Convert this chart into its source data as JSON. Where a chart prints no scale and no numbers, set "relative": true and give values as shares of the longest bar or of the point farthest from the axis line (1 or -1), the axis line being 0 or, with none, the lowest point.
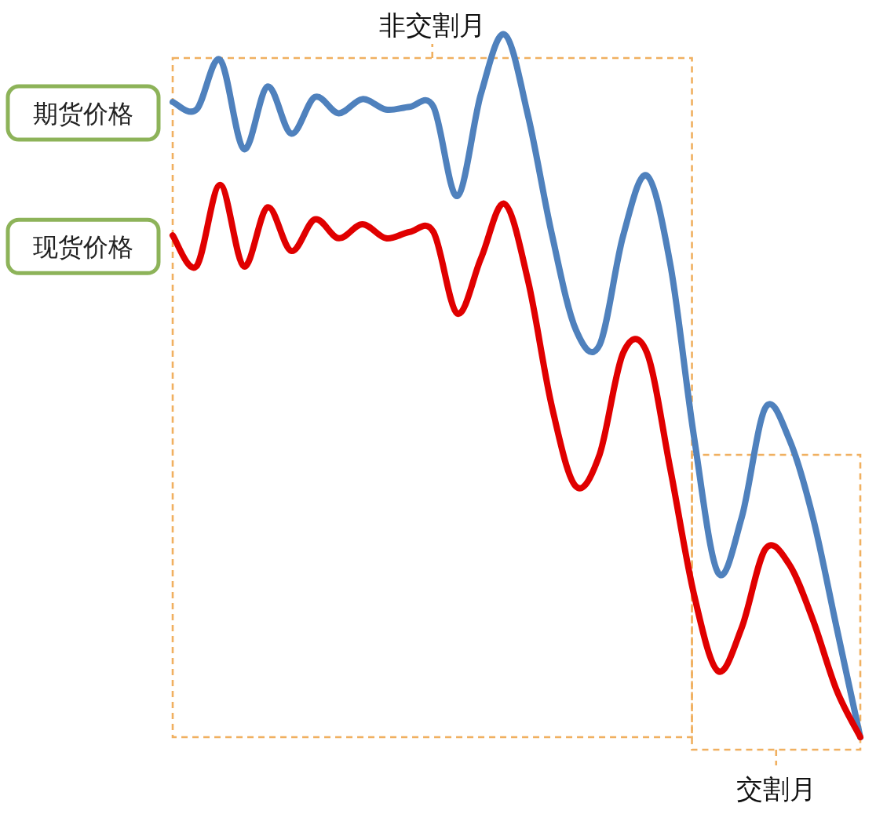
{
  "chart_data": {
    "type": "line",
    "relative": true,
    "legend": "left",
    "categories": [
      null,
      null,
      null,
      null,
      null,
      null,
      null,
      null,
      null,
      null,
      null,
      null,
      null,
      null,
      null,
      null,
      null,
      null,
      null,
      null,
      null,
      null,
      null,
      null,
      null,
      null,
      null,
      null,
      null,
      null
    ],
    "series": [
      {
        "name": "期货价格",
        "color": "#4f81bd",
        "values": [
          0.904,
          0.893,
          0.964,
          0.837,
          0.926,
          0.859,
          0.911,
          0.888,
          0.908,
          0.893,
          0.897,
          0.897,
          0.77,
          0.915,
          1.0,
          0.882,
          0.714,
          0.58,
          0.558,
          0.714,
          0.799,
          0.67,
          0.424,
          0.234,
          0.313,
          0.469,
          0.424,
          0.313,
          0.156,
          0
        ]
      },
      {
        "name": "现货价格",
        "color": "#e00000",
        "values": [
          0.714,
          0.67,
          0.786,
          0.67,
          0.754,
          0.692,
          0.737,
          0.71,
          0.73,
          0.71,
          0.719,
          0.719,
          0.603,
          0.681,
          0.759,
          0.647,
          0.469,
          0.357,
          0.402,
          0.547,
          0.547,
          0.379,
          0.201,
          0.094,
          0.156,
          0.268,
          0.246,
          0.167,
          0.067,
          0
        ]
      }
    ],
    "annotations": [
      "非交割月",
      "交割月"
    ]
  }
}
